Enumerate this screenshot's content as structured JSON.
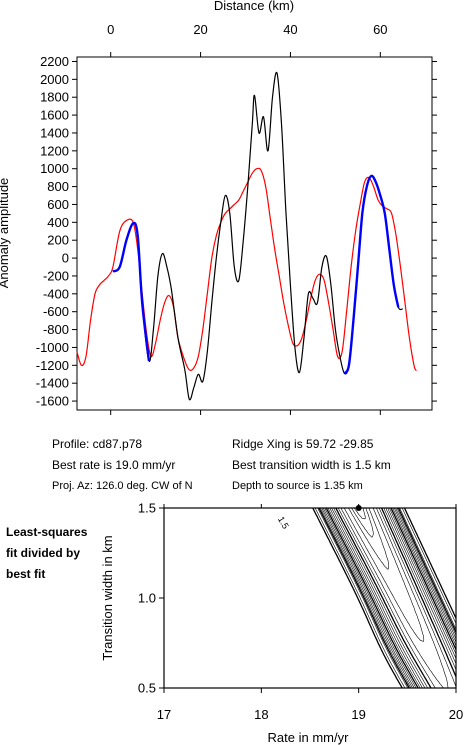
{
  "chart_data": [
    {
      "type": "line",
      "title": "",
      "xlabel": "Distance (km)",
      "ylabel": "Anomaly amplitude",
      "xlim": [
        -7.5,
        71.5
      ],
      "ylim": [
        -1700,
        2250
      ],
      "x_ticks": [
        0,
        20,
        40,
        60
      ],
      "x_tick_labels": [
        "0",
        "20",
        "40",
        "60"
      ],
      "y_ticks": [
        -1600,
        -1400,
        -1200,
        -1000,
        -800,
        -600,
        -400,
        -200,
        0,
        200,
        400,
        600,
        800,
        1000,
        1200,
        1400,
        1600,
        1800,
        2000,
        2200
      ],
      "y_tick_labels": [
        "-1600",
        "-1400",
        "-1200",
        "-1000",
        "-800",
        "-600",
        "-400",
        "-200",
        "0",
        "200",
        "400",
        "600",
        "800",
        "1000",
        "1200",
        "1400",
        "1600",
        "1800",
        "2000",
        "2200"
      ],
      "series": [
        {
          "color": "#000000",
          "points": [
            [
              0.5,
              -150
            ],
            [
              2,
              -100
            ],
            [
              3.5,
              200
            ],
            [
              5,
              390
            ],
            [
              6,
              250
            ],
            [
              7,
              -500
            ],
            [
              8.5,
              -1150
            ],
            [
              9.5,
              -800
            ],
            [
              10.5,
              -200
            ],
            [
              11.5,
              50
            ],
            [
              12.5,
              -100
            ],
            [
              13.5,
              -350
            ],
            [
              15,
              -900
            ],
            [
              16.5,
              -1250
            ],
            [
              17.5,
              -1580
            ],
            [
              18.5,
              -1450
            ],
            [
              19.5,
              -1300
            ],
            [
              20.5,
              -1380
            ],
            [
              21.5,
              -1050
            ],
            [
              22.5,
              -500
            ],
            [
              23.5,
              0
            ],
            [
              24.5,
              400
            ],
            [
              25.5,
              700
            ],
            [
              26.5,
              500
            ],
            [
              27.5,
              -100
            ],
            [
              28.5,
              -250
            ],
            [
              29.5,
              200
            ],
            [
              30.5,
              800
            ],
            [
              31.5,
              1500
            ],
            [
              32,
              1820
            ],
            [
              33,
              1400
            ],
            [
              34,
              1580
            ],
            [
              35,
              1200
            ],
            [
              36,
              1800
            ],
            [
              37,
              2070
            ],
            [
              38,
              1500
            ],
            [
              39,
              500
            ],
            [
              40,
              -300
            ],
            [
              41,
              -1000
            ],
            [
              42,
              -1280
            ],
            [
              43,
              -900
            ],
            [
              44,
              -400
            ],
            [
              45,
              -450
            ],
            [
              46,
              -500
            ],
            [
              47,
              -100
            ],
            [
              48,
              20
            ],
            [
              49,
              -300
            ],
            [
              50,
              -800
            ],
            [
              51,
              -1100
            ],
            [
              52,
              -1290
            ],
            [
              53,
              -1200
            ],
            [
              54,
              -700
            ],
            [
              55,
              -100
            ],
            [
              56,
              500
            ],
            [
              57,
              800
            ],
            [
              58,
              920
            ],
            [
              59,
              850
            ],
            [
              60,
              700
            ],
            [
              61,
              500
            ],
            [
              62,
              100
            ],
            [
              63,
              -300
            ],
            [
              64,
              -550
            ],
            [
              65,
              -570
            ]
          ]
        },
        {
          "color": "#ff0000",
          "points": [
            [
              -7.5,
              -1050
            ],
            [
              -6.5,
              -1200
            ],
            [
              -5.5,
              -1100
            ],
            [
              -4.5,
              -700
            ],
            [
              -3.5,
              -400
            ],
            [
              -2.5,
              -300
            ],
            [
              -1.5,
              -250
            ],
            [
              -0.5,
              -200
            ],
            [
              0.5,
              -100
            ],
            [
              2,
              300
            ],
            [
              3.5,
              420
            ],
            [
              5,
              400
            ],
            [
              6,
              100
            ],
            [
              7,
              -400
            ],
            [
              8,
              -850
            ],
            [
              9,
              -1100
            ],
            [
              10,
              -950
            ],
            [
              11,
              -700
            ],
            [
              12,
              -500
            ],
            [
              13,
              -420
            ],
            [
              14,
              -550
            ],
            [
              15,
              -900
            ],
            [
              16.5,
              -1150
            ],
            [
              17.5,
              -1250
            ],
            [
              18.5,
              -1230
            ],
            [
              19.5,
              -1100
            ],
            [
              20.5,
              -800
            ],
            [
              21.5,
              -400
            ],
            [
              22.5,
              0
            ],
            [
              23.5,
              250
            ],
            [
              24.5,
              400
            ],
            [
              25.5,
              500
            ],
            [
              26.5,
              550
            ],
            [
              27.5,
              600
            ],
            [
              28.5,
              650
            ],
            [
              29.5,
              750
            ],
            [
              30.5,
              850
            ],
            [
              31.5,
              950
            ],
            [
              32.5,
              1000
            ],
            [
              33.5,
              980
            ],
            [
              34.5,
              800
            ],
            [
              35.5,
              450
            ],
            [
              36.5,
              100
            ],
            [
              37.5,
              -200
            ],
            [
              38.5,
              -500
            ],
            [
              39.5,
              -750
            ],
            [
              40.5,
              -950
            ],
            [
              41.5,
              -980
            ],
            [
              42.5,
              -900
            ],
            [
              43.5,
              -700
            ],
            [
              44.5,
              -450
            ],
            [
              45.5,
              -250
            ],
            [
              46.5,
              -180
            ],
            [
              47.5,
              -250
            ],
            [
              48.5,
              -500
            ],
            [
              49.5,
              -800
            ],
            [
              50.5,
              -1100
            ],
            [
              51.5,
              -1050
            ],
            [
              52.5,
              -600
            ],
            [
              53.5,
              -100
            ],
            [
              54.5,
              300
            ],
            [
              55.5,
              600
            ],
            [
              56.5,
              850
            ],
            [
              57.5,
              900
            ],
            [
              58.5,
              800
            ],
            [
              59.5,
              650
            ],
            [
              60.5,
              580
            ],
            [
              61.5,
              550
            ],
            [
              62.5,
              500
            ],
            [
              63.5,
              250
            ],
            [
              64.5,
              -100
            ],
            [
              65.5,
              -500
            ],
            [
              66.5,
              -900
            ],
            [
              67.5,
              -1200
            ],
            [
              68,
              -1260
            ]
          ]
        },
        {
          "color": "#0000ff",
          "segments": [
            [
              [
                0.5,
                -150
              ],
              [
                2,
                -100
              ],
              [
                3.5,
                200
              ],
              [
                5,
                390
              ],
              [
                6,
                250
              ],
              [
                7,
                -500
              ],
              [
                8.5,
                -1150
              ]
            ],
            [
              [
                52,
                -1290
              ],
              [
                53,
                -1200
              ],
              [
                54,
                -700
              ],
              [
                55,
                -100
              ],
              [
                56,
                500
              ],
              [
                57,
                800
              ],
              [
                58,
                920
              ],
              [
                59,
                850
              ],
              [
                60,
                700
              ],
              [
                61,
                500
              ],
              [
                62,
                100
              ],
              [
                63,
                -300
              ],
              [
                64,
                -550
              ]
            ]
          ]
        }
      ]
    },
    {
      "type": "contour",
      "title": "",
      "xlabel": "Rate in mm/yr",
      "ylabel": "Transition width in km",
      "xlim": [
        17,
        20
      ],
      "ylim": [
        0.5,
        1.5
      ],
      "x_ticks": [
        17,
        18,
        19,
        20
      ],
      "x_tick_labels": [
        "17",
        "18",
        "19",
        "20"
      ],
      "y_ticks": [
        0.5,
        1.0,
        1.5
      ],
      "y_tick_labels": [
        "0.5",
        "1.0",
        "1.5"
      ],
      "best_fit": {
        "rate": 19.0,
        "width": 1.5
      },
      "contour_labels": [
        {
          "text": "1.5",
          "rate": 18.2,
          "width": 1.41
        }
      ],
      "contour_levels": [
        1.02,
        1.05,
        1.1,
        1.2,
        1.3,
        1.4,
        1.5,
        1.6,
        1.7,
        1.8,
        1.9,
        2.0,
        2.1,
        2.2,
        2.3,
        2.4,
        2.5,
        2.6,
        2.8,
        3.0
      ],
      "bold_levels": [
        1.5,
        2.0,
        2.5,
        3.0
      ]
    }
  ],
  "info": {
    "profile": "Profile: cd87.p78",
    "ridge_xing": "Ridge Xing is 59.72 -29.85",
    "best_rate": "Best rate is 19.0 mm/yr",
    "best_width": "Best transition width is 1.5 km",
    "proj_az": "Proj. Az: 126.0 deg. CW of N",
    "depth": "Depth to source is   1.35 km"
  },
  "side_caption": {
    "line1": "Least-squares",
    "line2": "fit divided by",
    "line3": "best fit"
  }
}
